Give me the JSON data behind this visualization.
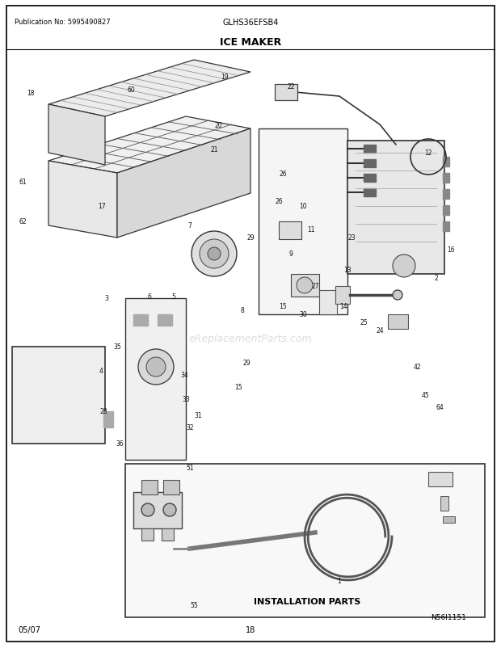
{
  "title": "ICE MAKER",
  "subtitle_left": "Publication No: 5995490827",
  "subtitle_center": "GLHS36EFSB4",
  "footer_left": "05/07",
  "footer_center": "18",
  "diagram_id": "N56I1151",
  "bg_color": "#ffffff",
  "border_color": "#000000",
  "text_color": "#000000",
  "fig_width": 6.2,
  "fig_height": 8.03,
  "dpi": 100,
  "installation_label": "INSTALLATION PARTS",
  "part_numbers": [
    "1",
    "2",
    "3",
    "4",
    "5",
    "6",
    "7",
    "8",
    "9",
    "10",
    "11",
    "12",
    "13",
    "14",
    "15",
    "16",
    "17",
    "18",
    "19",
    "20",
    "21",
    "22",
    "23",
    "24",
    "25",
    "26",
    "27",
    "28",
    "29",
    "30",
    "31",
    "32",
    "33",
    "34",
    "35",
    "36",
    "42",
    "45",
    "51",
    "55",
    "60",
    "61",
    "62",
    "64"
  ],
  "watermark": "eReplacementParts.com"
}
